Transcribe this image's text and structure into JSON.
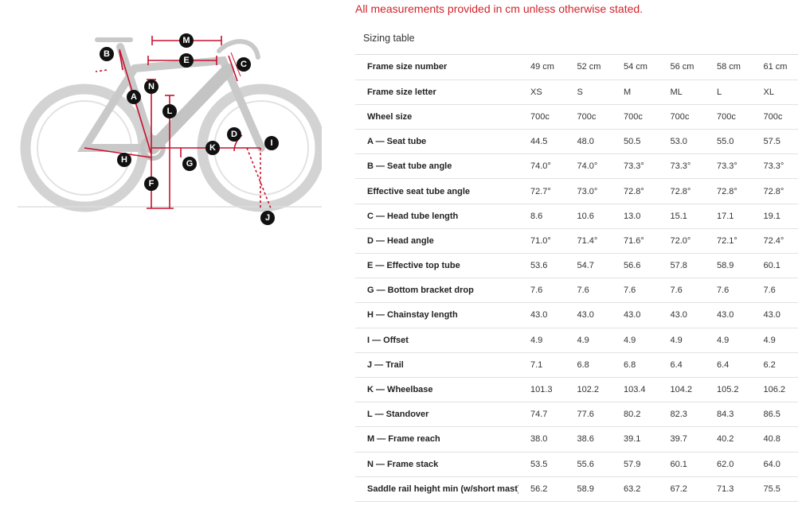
{
  "notice": "All measurements provided in cm unless otherwise stated.",
  "sizing_table": {
    "title": "Sizing table",
    "rows": [
      {
        "label": "Frame size number",
        "values": [
          "49 cm",
          "52 cm",
          "54 cm",
          "56 cm",
          "58 cm",
          "61 cm"
        ]
      },
      {
        "label": "Frame size letter",
        "values": [
          "XS",
          "S",
          "M",
          "ML",
          "L",
          "XL"
        ]
      },
      {
        "label": "Wheel size",
        "values": [
          "700c",
          "700c",
          "700c",
          "700c",
          "700c",
          "700c"
        ]
      },
      {
        "label": "A — Seat tube",
        "values": [
          "44.5",
          "48.0",
          "50.5",
          "53.0",
          "55.0",
          "57.5"
        ]
      },
      {
        "label": "B — Seat tube angle",
        "values": [
          "74.0°",
          "74.0°",
          "73.3°",
          "73.3°",
          "73.3°",
          "73.3°"
        ]
      },
      {
        "label": "Effective seat tube angle",
        "values": [
          "72.7°",
          "73.0°",
          "72.8°",
          "72.8°",
          "72.8°",
          "72.8°"
        ]
      },
      {
        "label": "C — Head tube length",
        "values": [
          "8.6",
          "10.6",
          "13.0",
          "15.1",
          "17.1",
          "19.1"
        ]
      },
      {
        "label": "D — Head angle",
        "values": [
          "71.0°",
          "71.4°",
          "71.6°",
          "72.0°",
          "72.1°",
          "72.4°"
        ]
      },
      {
        "label": "E — Effective top tube",
        "values": [
          "53.6",
          "54.7",
          "56.6",
          "57.8",
          "58.9",
          "60.1"
        ]
      },
      {
        "label": "G — Bottom bracket drop",
        "values": [
          "7.6",
          "7.6",
          "7.6",
          "7.6",
          "7.6",
          "7.6"
        ]
      },
      {
        "label": "H — Chainstay length",
        "values": [
          "43.0",
          "43.0",
          "43.0",
          "43.0",
          "43.0",
          "43.0"
        ]
      },
      {
        "label": "I — Offset",
        "values": [
          "4.9",
          "4.9",
          "4.9",
          "4.9",
          "4.9",
          "4.9"
        ]
      },
      {
        "label": "J — Trail",
        "values": [
          "7.1",
          "6.8",
          "6.8",
          "6.4",
          "6.4",
          "6.2"
        ]
      },
      {
        "label": "K — Wheelbase",
        "values": [
          "101.3",
          "102.2",
          "103.4",
          "104.2",
          "105.2",
          "106.2"
        ]
      },
      {
        "label": "L — Standover",
        "values": [
          "74.7",
          "77.6",
          "80.2",
          "82.3",
          "84.3",
          "86.5"
        ]
      },
      {
        "label": "M — Frame reach",
        "values": [
          "38.0",
          "38.6",
          "39.1",
          "39.7",
          "40.2",
          "40.8"
        ]
      },
      {
        "label": "N — Frame stack",
        "values": [
          "53.5",
          "55.6",
          "57.9",
          "60.1",
          "62.0",
          "64.0"
        ]
      },
      {
        "label": "Saddle rail height min (w/short mast)",
        "values": [
          "56.2",
          "58.9",
          "63.2",
          "67.2",
          "71.3",
          "75.5"
        ]
      }
    ]
  },
  "diagram": {
    "markers": [
      "A",
      "B",
      "C",
      "D",
      "E",
      "F",
      "G",
      "H",
      "I",
      "J",
      "K",
      "L",
      "M",
      "N"
    ]
  },
  "colors": {
    "notice": "#d1232a",
    "dimension_line": "#c8102e",
    "marker_fill": "#111111",
    "bike_gray": "#d0d0d0"
  }
}
